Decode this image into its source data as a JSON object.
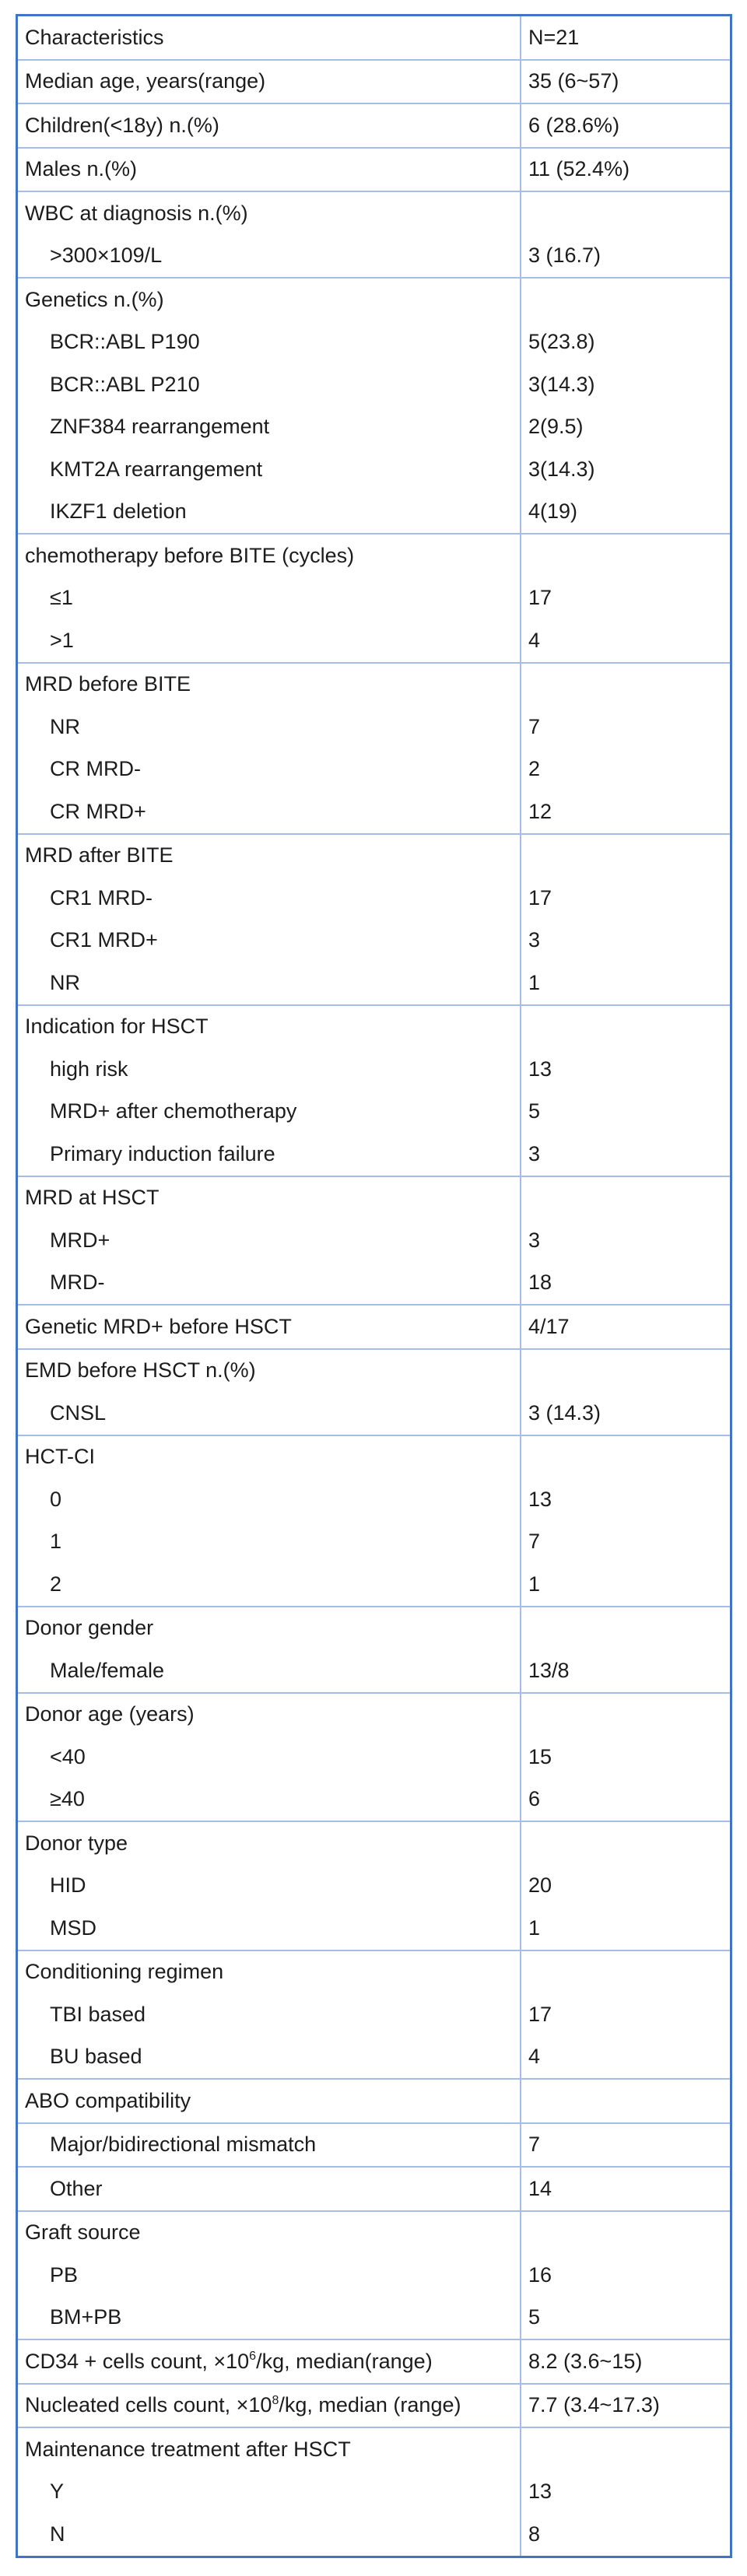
{
  "table": {
    "title_semantic": "patient-characteristics-table",
    "colors": {
      "outer_border": "#4472c4",
      "grid_line": "#a6bde8",
      "text": "#1c1c1c",
      "background": "#ffffff"
    },
    "sections": [
      {
        "rows": [
          {
            "label": "Characteristics",
            "indent": 0,
            "value": "N=21"
          }
        ]
      },
      {
        "rows": [
          {
            "label": "Median age, years(range)",
            "indent": 0,
            "value": "35 (6~57)"
          }
        ]
      },
      {
        "rows": [
          {
            "label": "Children(<18y) n.(%)",
            "indent": 0,
            "value": "6 (28.6%)"
          }
        ]
      },
      {
        "rows": [
          {
            "label": "Males n.(%)",
            "indent": 0,
            "value": "11 (52.4%)"
          }
        ]
      },
      {
        "rows": [
          {
            "label": "WBC at diagnosis n.(%)",
            "indent": 0,
            "value": ""
          },
          {
            "label": ">300×109/L",
            "indent": 1,
            "value": "3 (16.7)"
          }
        ]
      },
      {
        "rows": [
          {
            "label": "Genetics n.(%)",
            "indent": 0,
            "value": ""
          },
          {
            "label": "BCR::ABL P190",
            "indent": 1,
            "value": "5(23.8)"
          },
          {
            "label": "BCR::ABL P210",
            "indent": 1,
            "value": "3(14.3)"
          },
          {
            "label": "ZNF384 rearrangement",
            "indent": 1,
            "value": "2(9.5)"
          },
          {
            "label": "KMT2A rearrangement",
            "indent": 1,
            "value": "3(14.3)"
          },
          {
            "label": "IKZF1 deletion",
            "indent": 1,
            "value": "4(19)"
          }
        ]
      },
      {
        "rows": [
          {
            "label": "chemotherapy before BITE (cycles)",
            "indent": 0,
            "value": ""
          },
          {
            "label": "≤1",
            "indent": 1,
            "value": "17"
          },
          {
            "label": ">1",
            "indent": 1,
            "value": "4"
          }
        ]
      },
      {
        "rows": [
          {
            "label": "MRD before BITE",
            "indent": 0,
            "value": ""
          },
          {
            "label": "NR",
            "indent": 1,
            "value": "7"
          },
          {
            "label": "CR MRD-",
            "indent": 1,
            "value": "2"
          },
          {
            "label": "CR MRD+",
            "indent": 1,
            "value": "12"
          }
        ]
      },
      {
        "rows": [
          {
            "label": "MRD after BITE",
            "indent": 0,
            "value": ""
          },
          {
            "label": "CR1 MRD-",
            "indent": 1,
            "value": "17"
          },
          {
            "label": "CR1 MRD+",
            "indent": 1,
            "value": "3"
          },
          {
            "label": "NR",
            "indent": 1,
            "value": "1"
          }
        ]
      },
      {
        "rows": [
          {
            "label": "Indication for HSCT",
            "indent": 0,
            "value": ""
          },
          {
            "label": "high risk",
            "indent": 1,
            "value": "13"
          },
          {
            "label": "MRD+ after chemotherapy",
            "indent": 1,
            "value": "5"
          },
          {
            "label": "Primary induction failure",
            "indent": 1,
            "value": "3"
          }
        ]
      },
      {
        "rows": [
          {
            "label": "MRD at HSCT",
            "indent": 0,
            "value": ""
          },
          {
            "label": "MRD+",
            "indent": 1,
            "value": "3"
          },
          {
            "label": "MRD-",
            "indent": 1,
            "value": "18"
          }
        ]
      },
      {
        "rows": [
          {
            "label": "Genetic MRD+ before HSCT",
            "indent": 0,
            "value": "4/17"
          }
        ]
      },
      {
        "rows": [
          {
            "label": "EMD before HSCT n.(%)",
            "indent": 0,
            "value": ""
          },
          {
            "label": "CNSL",
            "indent": 1,
            "value": "3 (14.3)"
          }
        ]
      },
      {
        "rows": [
          {
            "label": "HCT-CI",
            "indent": 0,
            "value": ""
          },
          {
            "label": "0",
            "indent": 1,
            "value": "13"
          },
          {
            "label": "1",
            "indent": 1,
            "value": "7"
          },
          {
            "label": "2",
            "indent": 1,
            "value": "1"
          }
        ]
      },
      {
        "rows": [
          {
            "label": "Donor gender",
            "indent": 0,
            "value": ""
          },
          {
            "label": "Male/female",
            "indent": 1,
            "value": "13/8"
          }
        ]
      },
      {
        "rows": [
          {
            "label": "Donor age (years)",
            "indent": 0,
            "value": ""
          },
          {
            "label": "<40",
            "indent": 1,
            "value": "15"
          },
          {
            "label": "≥40",
            "indent": 1,
            "value": "6"
          }
        ]
      },
      {
        "rows": [
          {
            "label": "Donor type",
            "indent": 0,
            "value": ""
          },
          {
            "label": "HID",
            "indent": 1,
            "value": "20"
          },
          {
            "label": "MSD",
            "indent": 1,
            "value": "1"
          }
        ]
      },
      {
        "rows": [
          {
            "label": "Conditioning regimen",
            "indent": 0,
            "value": ""
          },
          {
            "label": "TBI based",
            "indent": 1,
            "value": "17"
          },
          {
            "label": "BU based",
            "indent": 1,
            "value": "4"
          }
        ]
      },
      {
        "rows": [
          {
            "label": "ABO compatibility",
            "indent": 0,
            "value": ""
          }
        ]
      },
      {
        "rows": [
          {
            "label": "Major/bidirectional mismatch",
            "indent": 1,
            "value": "7"
          }
        ]
      },
      {
        "rows": [
          {
            "label": "Other",
            "indent": 1,
            "value": "14"
          }
        ]
      },
      {
        "rows": [
          {
            "label": "Graft source",
            "indent": 0,
            "value": ""
          },
          {
            "label": "PB",
            "indent": 1,
            "value": "16"
          },
          {
            "label": "BM+PB",
            "indent": 1,
            "value": "5"
          }
        ]
      },
      {
        "rows": [
          {
            "label": "CD34 + cells count, ×10^6/kg, median(range)",
            "label_parts": {
              "pre": "CD34 + cells count, ×10",
              "sup": "6",
              "post": "/kg, median(range)"
            },
            "indent": 0,
            "value": "8.2 (3.6~15)"
          }
        ]
      },
      {
        "rows": [
          {
            "label": "Nucleated cells count, ×10^8/kg, median (range)",
            "label_parts": {
              "pre": "Nucleated cells count, ×10",
              "sup": "8",
              "post": "/kg, median (range)"
            },
            "indent": 0,
            "value": "7.7 (3.4~17.3)"
          }
        ]
      },
      {
        "rows": [
          {
            "label": "Maintenance treatment after HSCT",
            "indent": 0,
            "value": ""
          },
          {
            "label": "Y",
            "indent": 1,
            "value": "13"
          },
          {
            "label": "N",
            "indent": 1,
            "value": "8"
          }
        ]
      }
    ]
  }
}
